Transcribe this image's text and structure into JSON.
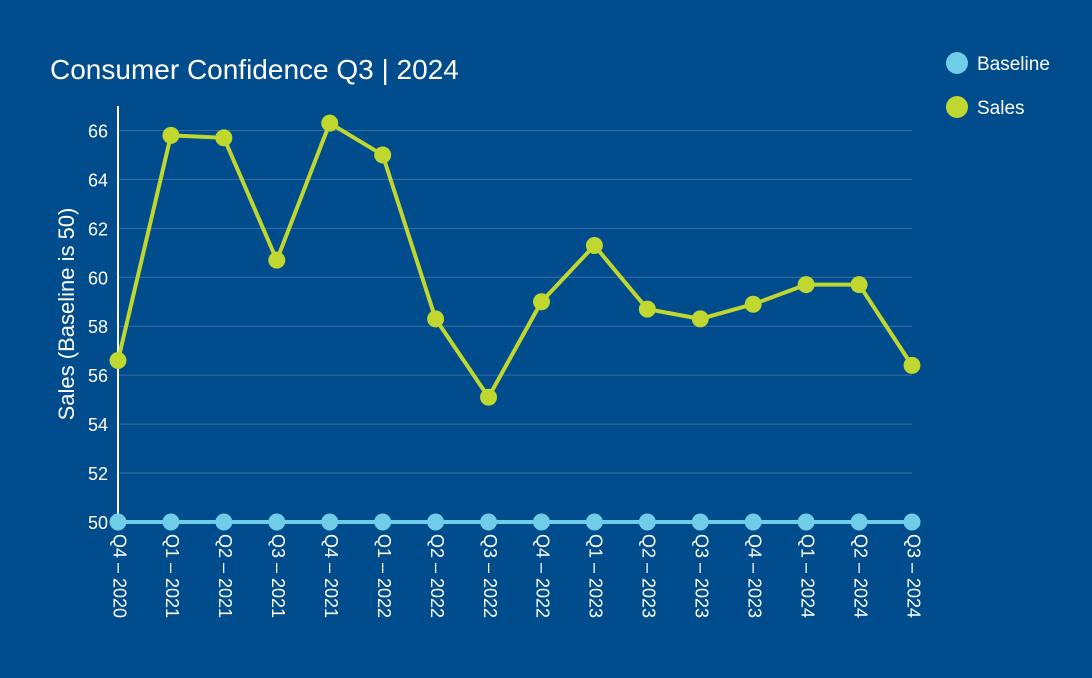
{
  "colors": {
    "background": "#004c8c",
    "grid": "#3a6ea3",
    "axis": "#ffffff",
    "text": "#ffffff"
  },
  "chart_data": {
    "type": "line",
    "title": "Consumer Confidence Q3 | 2024",
    "xlabel": "",
    "ylabel": "Sales (Baseline is 50)",
    "ylim": [
      50,
      67
    ],
    "yticks": [
      50,
      52,
      54,
      56,
      58,
      60,
      62,
      64,
      66
    ],
    "grid": true,
    "legend_position": "top-right",
    "categories": [
      "Q4 – 2020",
      "Q1 – 2021",
      "Q2 – 2021",
      "Q3 – 2021",
      "Q4 – 2021",
      "Q1 – 2022",
      "Q2 – 2022",
      "Q3 – 2022",
      "Q4 – 2022",
      "Q1 – 2023",
      "Q2 – 2023",
      "Q3 – 2023",
      "Q4 – 2023",
      "Q1 – 2024",
      "Q2 – 2024",
      "Q3 – 2024"
    ],
    "series": [
      {
        "name": "Baseline",
        "color": "#6fcde8",
        "values": [
          50,
          50,
          50,
          50,
          50,
          50,
          50,
          50,
          50,
          50,
          50,
          50,
          50,
          50,
          50,
          50
        ]
      },
      {
        "name": "Sales",
        "color": "#c0d730",
        "values": [
          56.6,
          65.8,
          65.7,
          60.7,
          66.3,
          65.0,
          58.3,
          55.1,
          59.0,
          61.3,
          58.7,
          58.3,
          58.9,
          59.7,
          59.7,
          56.4
        ]
      }
    ]
  }
}
